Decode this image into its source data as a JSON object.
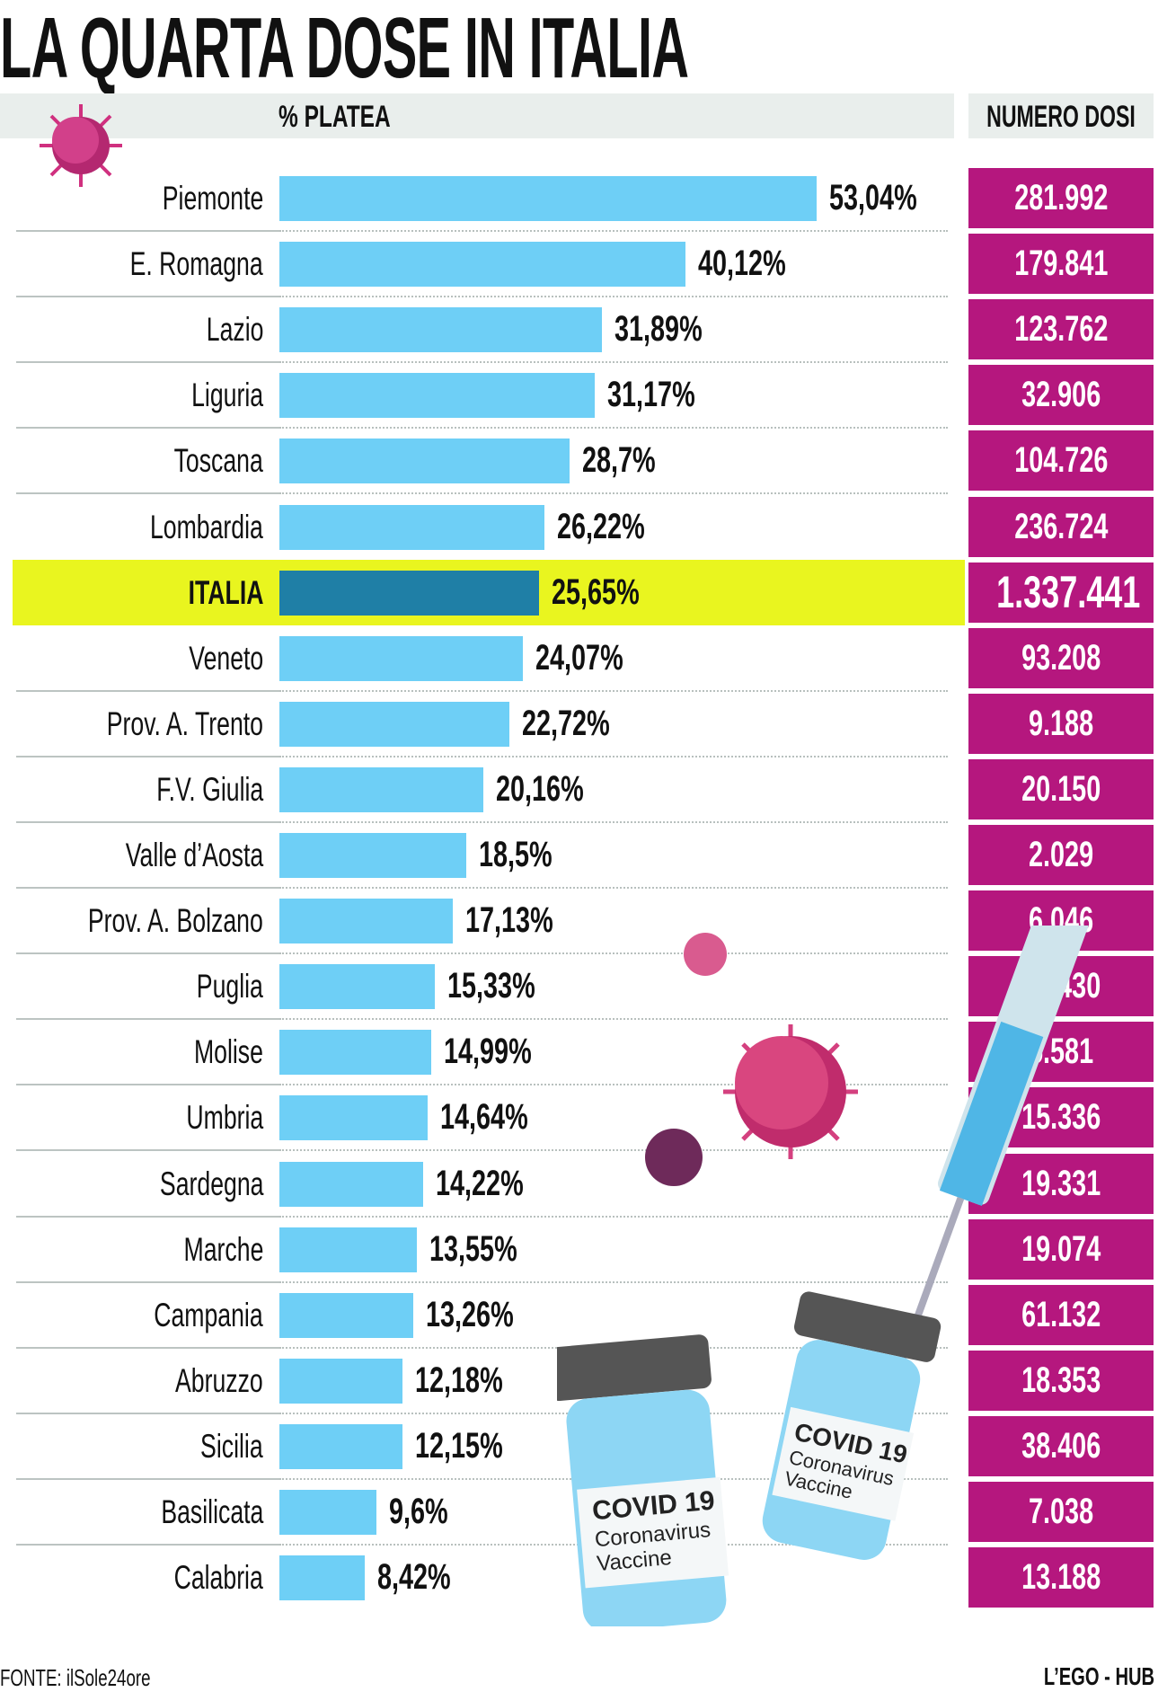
{
  "title": "LA QUARTA DOSE IN ITALIA",
  "header": {
    "col1": "% PLATEA",
    "col2": "NUMERO DOSI"
  },
  "footer": {
    "source": "FONTE: ilSole24ore",
    "brand": "L’EGO - HUB"
  },
  "vials": [
    {
      "line1": "COVID 19",
      "line2": "Coronavirus",
      "line3": "Vaccine"
    },
    {
      "line1": "COVID 19",
      "line2": "Coronavirus",
      "line3": "Vaccine"
    }
  ],
  "colors": {
    "bar": "#6ecff6",
    "highlight_bar": "#1f7fa6",
    "highlight_row": "#e9f51f",
    "dose_box": "#b5177e"
  },
  "chart_data": {
    "type": "bar",
    "title": "LA QUARTA DOSE IN ITALIA",
    "xlabel": "% PLATEA",
    "ylabel": "",
    "xlim": [
      0,
      60
    ],
    "categories": [
      "Piemonte",
      "E. Romagna",
      "Lazio",
      "Liguria",
      "Toscana",
      "Lombardia",
      "ITALIA",
      "Veneto",
      "Prov.  A. Trento",
      "F.V. Giulia",
      "Valle d’Aosta",
      "Prov.  A. Bolzano",
      "Puglia",
      "Molise",
      "Umbria",
      "Sardegna",
      "Marche",
      "Campania",
      "Abruzzo",
      "Sicilia",
      "Basilicata",
      "Calabria"
    ],
    "values": [
      53.04,
      40.12,
      31.89,
      31.17,
      28.7,
      26.22,
      25.65,
      24.07,
      22.72,
      20.16,
      18.5,
      17.13,
      15.33,
      14.99,
      14.64,
      14.22,
      13.55,
      13.26,
      12.18,
      12.15,
      9.6,
      8.42
    ],
    "value_labels": [
      "53,04%",
      "40,12%",
      "31,89%",
      "31,17%",
      "28,7%",
      "26,22%",
      "25,65%",
      "24,07%",
      "22,72%",
      "20,16%",
      "18,5%",
      "17,13%",
      "15,33%",
      "14,99%",
      "14,64%",
      "14,22%",
      "13,55%",
      "13,26%",
      "12,18%",
      "12,15%",
      "9,6%",
      "8,42%"
    ],
    "doses_header": "NUMERO DOSI",
    "doses": [
      "281.992",
      "179.841",
      "123.762",
      "32.906",
      "104.726",
      "236.724",
      "1.337.441",
      "93.208",
      "9.188",
      "20.150",
      "2.029",
      "6.046",
      "49.430",
      "5.581",
      "15.336",
      "19.331",
      "19.074",
      "61.132",
      "18.353",
      "38.406",
      "7.038",
      "13.188"
    ],
    "highlight": "ITALIA"
  }
}
